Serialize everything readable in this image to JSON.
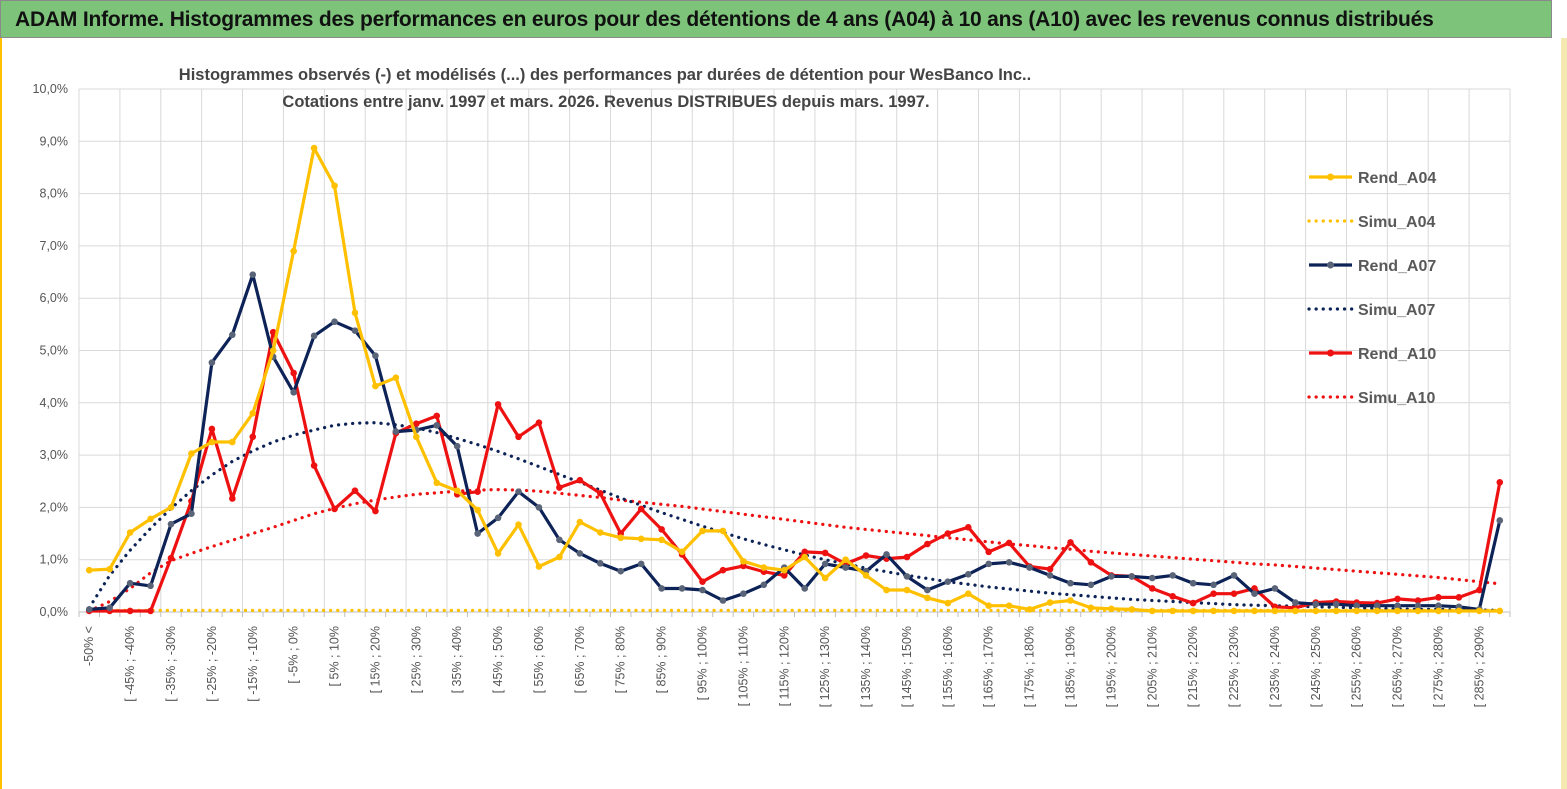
{
  "header": {
    "title": "ADAM Informe. Histogrammes des performances en euros pour des détentions de 4 ans (A04) à 10 ans (A10) avec les revenus connus distribués"
  },
  "colors": {
    "banner": "#7dc47a",
    "A04": "#ffc000",
    "A07": "#0d2357",
    "A10": "#ee1111",
    "marker_A07": "#5a6478",
    "grid": "#d9d9d9"
  },
  "chart_data": {
    "type": "line",
    "title_line1": "Histogrammes observés (-) et modélisés (...) des performances par durées de détention pour WesBanco Inc..",
    "title_line2": "Cotations entre janv. 1997 et mars. 2026. Revenus DISTRIBUES depuis mars. 1997.",
    "ylim": [
      0,
      10
    ],
    "yticks": [
      "0,0%",
      "1,0%",
      "2,0%",
      "3,0%",
      "4,0%",
      "5,0%",
      "6,0%",
      "7,0%",
      "8,0%",
      "9,0%",
      "10,0%"
    ],
    "xtick_labels": [
      "-50% <",
      "[ -45% ; -40%",
      "[ -35% ; -30%",
      "[ -25% ; -20%",
      "[ -15% ; -10%",
      "[ -5% ; 0%",
      "[ 5% ; 10%",
      "[ 15% ; 20%",
      "[ 25% ; 30%",
      "[ 35% ; 40%",
      "[ 45% ; 50%",
      "[ 55% ; 60%",
      "[ 65% ; 70%",
      "[ 75% ; 80%",
      "[ 85% ; 90%",
      "[ 95% ; 100%",
      "[ 105% ; 110%",
      "[ 115% ; 120%",
      "[ 125% ; 130%",
      "[ 135% ; 140%",
      "[ 145% ; 150%",
      "[ 155% ; 160%",
      "[ 165% ; 170%",
      "[ 175% ; 180%",
      "[ 185% ; 190%",
      "[ 195% ; 200%",
      "[ 205% ; 210%",
      "[ 215% ; 220%",
      "[ 225% ; 230%",
      "[ 235% ; 240%",
      "[ 245% ; 250%",
      "[ 255% ; 260%",
      "[ 265% ; 270%",
      "[ 275% ; 280%",
      "[ 285% ; 290%"
    ],
    "n_points": 70,
    "legend": [
      "Rend_A04",
      "Simu_A04",
      "Rend_A07",
      "Simu_A07",
      "Rend_A10",
      "Simu_A10"
    ],
    "series": [
      {
        "name": "Rend_A04",
        "style": "solid",
        "color": "#ffc000",
        "values": [
          0.8,
          0.82,
          1.52,
          1.78,
          2.0,
          3.03,
          3.25,
          3.25,
          3.8,
          5.0,
          6.9,
          8.87,
          8.15,
          5.72,
          4.32,
          4.48,
          3.35,
          2.47,
          2.32,
          1.95,
          1.12,
          1.67,
          0.87,
          1.05,
          1.72,
          1.52,
          1.42,
          1.4,
          1.38,
          1.15,
          1.55,
          1.55,
          0.97,
          0.85,
          0.8,
          1.05,
          0.65,
          1.0,
          0.7,
          0.42,
          0.42,
          0.27,
          0.17,
          0.35,
          0.12,
          0.12,
          0.05,
          0.18,
          0.22,
          0.08,
          0.06,
          0.05,
          0.02,
          0.02,
          0.02,
          0.02,
          0.02,
          0.02,
          0.02,
          0.02,
          0.02,
          0.02,
          0.02,
          0.02,
          0.02,
          0.02,
          0.02,
          0.02,
          0.02,
          0.02
        ]
      },
      {
        "name": "Simu_A04",
        "style": "dotted",
        "color": "#ffc000",
        "values": [
          0.03,
          0.03,
          0.03,
          0.03,
          0.03,
          0.03,
          0.03,
          0.03,
          0.03,
          0.03,
          0.03,
          0.03,
          0.03,
          0.03,
          0.03,
          0.03,
          0.03,
          0.03,
          0.03,
          0.03,
          0.03,
          0.03,
          0.03,
          0.03,
          0.03,
          0.03,
          0.03,
          0.03,
          0.03,
          0.03,
          0.03,
          0.03,
          0.03,
          0.03,
          0.03,
          0.03,
          0.03,
          0.03,
          0.03,
          0.03,
          0.03,
          0.03,
          0.03,
          0.03,
          0.03,
          0.03,
          0.03,
          0.03,
          0.03,
          0.03,
          0.03,
          0.03,
          0.03,
          0.03,
          0.03,
          0.03,
          0.03,
          0.03,
          0.03,
          0.03,
          0.03,
          0.03,
          0.03,
          0.03,
          0.03,
          0.03,
          0.03,
          0.03,
          0.03,
          0.03
        ]
      },
      {
        "name": "Rend_A07",
        "style": "solid",
        "color": "#0d2357",
        "values": [
          0.05,
          0.08,
          0.55,
          0.5,
          1.68,
          1.88,
          4.77,
          5.3,
          6.45,
          4.88,
          4.2,
          5.28,
          5.55,
          5.38,
          4.9,
          3.45,
          3.48,
          3.57,
          3.17,
          1.5,
          1.8,
          2.3,
          2.0,
          1.38,
          1.12,
          0.93,
          0.78,
          0.92,
          0.45,
          0.45,
          0.42,
          0.22,
          0.35,
          0.52,
          0.85,
          0.45,
          0.92,
          0.85,
          0.78,
          1.1,
          0.68,
          0.42,
          0.58,
          0.72,
          0.92,
          0.95,
          0.85,
          0.7,
          0.55,
          0.52,
          0.68,
          0.68,
          0.65,
          0.7,
          0.55,
          0.52,
          0.7,
          0.35,
          0.45,
          0.18,
          0.15,
          0.15,
          0.12,
          0.12,
          0.12,
          0.12,
          0.12,
          0.1,
          0.05,
          1.75
        ]
      },
      {
        "name": "Simu_A07",
        "style": "dotted",
        "color": "#0d2357",
        "values": [
          0.08,
          0.7,
          1.18,
          1.6,
          1.98,
          2.32,
          2.62,
          2.88,
          3.08,
          3.25,
          3.38,
          3.48,
          3.57,
          3.61,
          3.62,
          3.58,
          3.52,
          3.43,
          3.32,
          3.2,
          3.07,
          2.93,
          2.78,
          2.63,
          2.48,
          2.33,
          2.18,
          2.04,
          1.9,
          1.77,
          1.64,
          1.52,
          1.4,
          1.29,
          1.19,
          1.09,
          1.0,
          0.92,
          0.84,
          0.77,
          0.7,
          0.64,
          0.58,
          0.53,
          0.48,
          0.44,
          0.4,
          0.36,
          0.33,
          0.3,
          0.27,
          0.24,
          0.22,
          0.2,
          0.18,
          0.16,
          0.14,
          0.13,
          0.12,
          0.11,
          0.1,
          0.09,
          0.08,
          0.07,
          0.06,
          0.05,
          0.05,
          0.04,
          0.04,
          0.03
        ]
      },
      {
        "name": "Rend_A10",
        "style": "solid",
        "color": "#ee1111",
        "values": [
          0.02,
          0.02,
          0.02,
          0.02,
          1.03,
          2.12,
          3.5,
          2.17,
          3.35,
          5.35,
          4.57,
          2.8,
          1.97,
          2.32,
          1.93,
          3.42,
          3.6,
          3.75,
          2.25,
          2.3,
          3.97,
          3.35,
          3.62,
          2.38,
          2.52,
          2.27,
          1.5,
          1.97,
          1.58,
          1.1,
          0.58,
          0.8,
          0.88,
          0.77,
          0.7,
          1.15,
          1.13,
          0.92,
          1.08,
          1.02,
          1.05,
          1.3,
          1.5,
          1.62,
          1.15,
          1.32,
          0.87,
          0.82,
          1.33,
          0.95,
          0.7,
          0.68,
          0.45,
          0.3,
          0.17,
          0.35,
          0.35,
          0.45,
          0.1,
          0.08,
          0.18,
          0.2,
          0.18,
          0.17,
          0.25,
          0.22,
          0.28,
          0.28,
          0.42,
          2.48
        ]
      },
      {
        "name": "Simu_A10",
        "style": "dotted",
        "color": "#ee1111",
        "values": [
          0.02,
          0.2,
          0.45,
          0.75,
          0.98,
          1.12,
          1.25,
          1.37,
          1.5,
          1.62,
          1.75,
          1.88,
          1.98,
          2.07,
          2.14,
          2.2,
          2.25,
          2.28,
          2.31,
          2.33,
          2.34,
          2.33,
          2.31,
          2.27,
          2.23,
          2.19,
          2.14,
          2.1,
          2.06,
          2.02,
          1.97,
          1.92,
          1.87,
          1.82,
          1.77,
          1.72,
          1.67,
          1.62,
          1.58,
          1.54,
          1.5,
          1.46,
          1.42,
          1.38,
          1.34,
          1.3,
          1.27,
          1.23,
          1.2,
          1.16,
          1.13,
          1.1,
          1.07,
          1.04,
          1.01,
          0.98,
          0.95,
          0.92,
          0.9,
          0.87,
          0.84,
          0.81,
          0.78,
          0.75,
          0.72,
          0.69,
          0.66,
          0.62,
          0.58,
          0.54
        ]
      }
    ]
  }
}
